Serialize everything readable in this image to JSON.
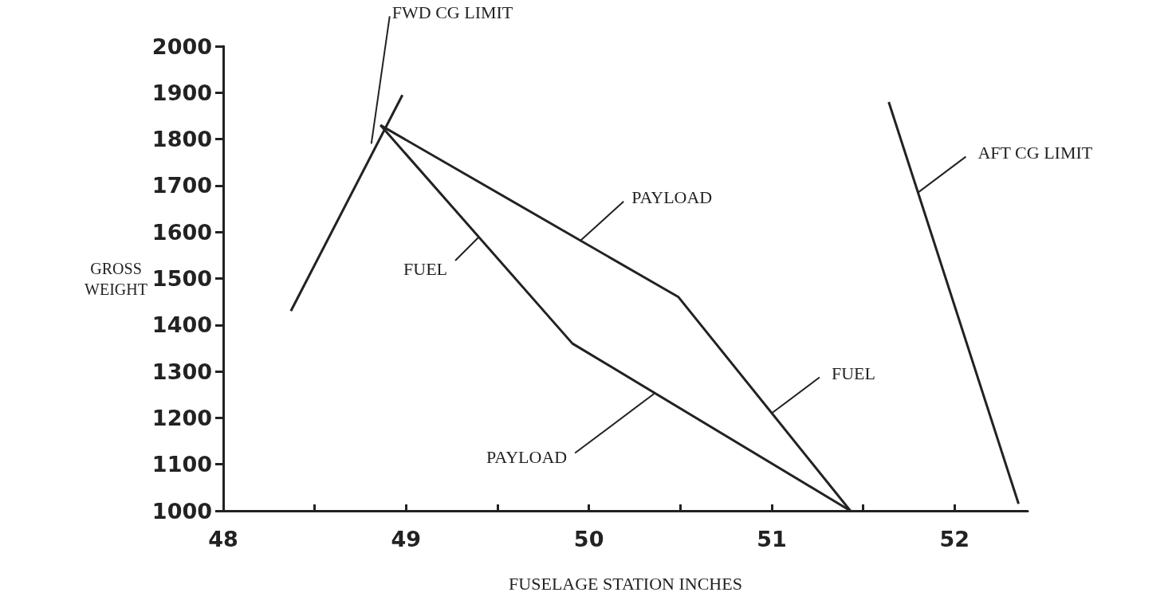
{
  "chart_data": {
    "type": "line",
    "xlabel": "FUSELAGE STATION INCHES",
    "ylabel": "GROSS\nWEIGHT",
    "xlim": [
      48,
      52.4
    ],
    "xticks": [
      48,
      {
        "value": 48.5,
        "label": null
      },
      49,
      {
        "value": 49.5,
        "label": null
      },
      50,
      {
        "value": 50.5,
        "label": null
      },
      51,
      {
        "value": 51.5,
        "label": null
      },
      52
    ],
    "ylim": [
      1000,
      2000
    ],
    "yticks": [
      1000,
      1100,
      1200,
      1300,
      1400,
      1500,
      1600,
      1700,
      1800,
      1900,
      2000
    ],
    "grid": false,
    "marker": "none",
    "line_style": "solid",
    "series": [
      {
        "color": "#222222",
        "x": [
          48.37,
          48.98
        ],
        "values": [
          1430,
          1895
        ]
      },
      {
        "color": "#222222",
        "x": [
          48.86,
          50.49,
          51.43
        ],
        "values": [
          1830,
          1460,
          1000
        ]
      },
      {
        "color": "#222222",
        "x": [
          48.86,
          49.91,
          51.43
        ],
        "values": [
          1830,
          1360,
          1000
        ]
      },
      {
        "color": "#222222",
        "x": [
          51.64,
          52.35
        ],
        "values": [
          1880,
          1015
        ]
      }
    ],
    "annotations": [
      {
        "text": "FWD CG LIMIT",
        "x": 48.81,
        "y": 1790
      },
      {
        "text": "PAYLOAD",
        "x": 49.95,
        "y": 1580
      },
      {
        "text": "FUEL",
        "x": 49.4,
        "y": 1590
      },
      {
        "text": "FUEL",
        "x": 51.0,
        "y": 1210
      },
      {
        "text": "PAYLOAD",
        "x": 50.36,
        "y": 1253
      },
      {
        "text": "AFT CG LIMIT",
        "x": 51.8,
        "y": 1685
      }
    ]
  }
}
